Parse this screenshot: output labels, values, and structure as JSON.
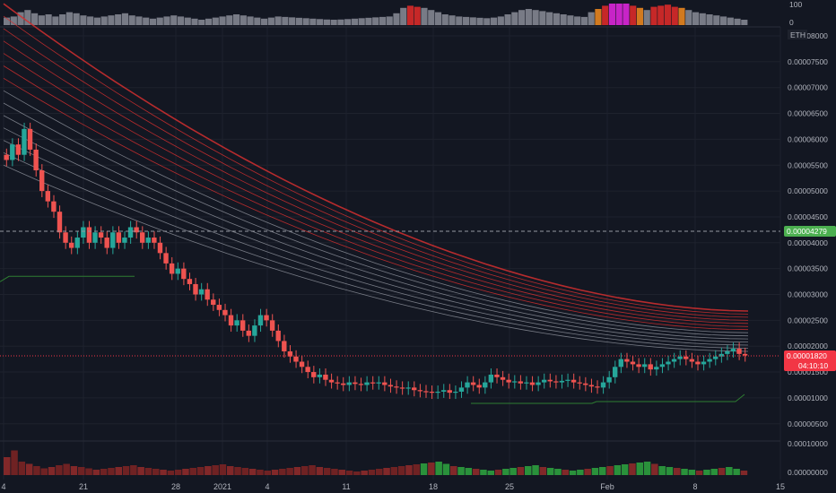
{
  "colors": {
    "background": "#131722",
    "grid": "#1e222d",
    "up": "#26a69a",
    "down": "#ef5350",
    "ribbon_red": "#d32f2f",
    "ribbon_gray": "#8a8d96",
    "ribbon_green": "#4caf50",
    "price_tag_current": "#f23645",
    "price_tag_marker": "#4caf50",
    "indicator_magenta": "#c724c7",
    "indicator_red": "#c62828",
    "indicator_gray": "#787b86",
    "indicator_orange": "#d27a1f"
  },
  "top_panel": {
    "label_max": "100",
    "label_min": "0"
  },
  "symbol_badge": "ETH",
  "price_scale": {
    "labels": [
      "0.00008000",
      "0.00007500",
      "0.00007000",
      "0.00006500",
      "0.00006000",
      "0.00005500",
      "0.00005000",
      "0.00004500",
      "0.00004000",
      "0.00003500",
      "0.00003000",
      "0.00002500",
      "0.00002000",
      "0.00001500",
      "0.00001000",
      "0.00000500"
    ],
    "marker_price": "0.00004279",
    "current_price": "0.00001820",
    "countdown": "04:10:10"
  },
  "volume_scale": {
    "labels": [
      "0.00010000",
      "0.00000000"
    ]
  },
  "time_axis": {
    "labels": [
      "4",
      "21",
      "28",
      "2021",
      "4",
      "11",
      "18",
      "25",
      "Feb",
      "8",
      "15"
    ]
  },
  "chart_data": {
    "type": "candlestick",
    "quote": "ETH",
    "ylim": [
      5e-07,
      8e-06
    ],
    "x_ticks": [
      "4",
      "21",
      "28",
      "2021",
      "4",
      "11",
      "18",
      "25",
      "Feb",
      "8",
      "15"
    ],
    "closes": [
      5.6,
      5.9,
      5.7,
      6.2,
      5.8,
      5.4,
      5.0,
      4.8,
      4.6,
      4.2,
      4.0,
      3.9,
      4.1,
      4.3,
      4.0,
      4.2,
      4.1,
      3.9,
      4.2,
      4.0,
      4.1,
      4.3,
      4.2,
      4.0,
      4.1,
      4.0,
      3.8,
      3.6,
      3.4,
      3.5,
      3.3,
      3.2,
      3.0,
      3.1,
      2.9,
      2.8,
      2.7,
      2.6,
      2.4,
      2.5,
      2.3,
      2.2,
      2.4,
      2.6,
      2.5,
      2.3,
      2.1,
      1.9,
      1.8,
      1.7,
      1.6,
      1.5,
      1.4,
      1.45,
      1.35,
      1.3,
      1.28,
      1.25,
      1.3,
      1.27,
      1.25,
      1.3,
      1.28,
      1.3,
      1.25,
      1.22,
      1.2,
      1.18,
      1.2,
      1.15,
      1.13,
      1.12,
      1.1,
      1.12,
      1.15,
      1.1,
      1.12,
      1.2,
      1.3,
      1.25,
      1.2,
      1.3,
      1.45,
      1.4,
      1.35,
      1.3,
      1.32,
      1.28,
      1.3,
      1.25,
      1.3,
      1.35,
      1.32,
      1.3,
      1.33,
      1.35,
      1.3,
      1.28,
      1.25,
      1.22,
      1.2,
      1.3,
      1.4,
      1.6,
      1.75,
      1.7,
      1.65,
      1.6,
      1.65,
      1.55,
      1.6,
      1.65,
      1.7,
      1.75,
      1.8,
      1.75,
      1.7,
      1.65,
      1.7,
      1.75,
      1.8,
      1.85,
      1.9,
      1.95,
      1.85,
      1.82
    ],
    "ema_ribbon_start": 5.5,
    "ema_ribbon_end": 1.9,
    "support_level": 3.35,
    "marker_level": 4.279,
    "current_level": 1.82,
    "oscillator": [
      35,
      40,
      60,
      70,
      55,
      45,
      50,
      40,
      50,
      60,
      55,
      45,
      40,
      35,
      40,
      45,
      50,
      55,
      45,
      40,
      35,
      30,
      35,
      40,
      45,
      40,
      35,
      30,
      25,
      30,
      35,
      40,
      45,
      50,
      45,
      40,
      35,
      30,
      35,
      40,
      38,
      36,
      34,
      32,
      30,
      28,
      26,
      25,
      26,
      28,
      30,
      32,
      34,
      36,
      38,
      40,
      55,
      80,
      90,
      85,
      80,
      70,
      60,
      50,
      45,
      40,
      38,
      36,
      34,
      32,
      35,
      40,
      50,
      60,
      70,
      75,
      70,
      65,
      60,
      55,
      50,
      45,
      40,
      38,
      60,
      75,
      90,
      100,
      100,
      100,
      90,
      80,
      70,
      85,
      90,
      95,
      85,
      80,
      70,
      60,
      55,
      50,
      45,
      40,
      35,
      30,
      25
    ],
    "volume": [
      40,
      55,
      30,
      25,
      20,
      15,
      18,
      22,
      25,
      20,
      18,
      15,
      12,
      14,
      16,
      18,
      20,
      22,
      18,
      16,
      14,
      12,
      10,
      12,
      14,
      16,
      18,
      20,
      22,
      24,
      20,
      18,
      16,
      14,
      12,
      10,
      12,
      14,
      16,
      18,
      20,
      22,
      18,
      16,
      14,
      12,
      10,
      8,
      10,
      12,
      14,
      16,
      18,
      20,
      22,
      24,
      26,
      28,
      30,
      25,
      20,
      18,
      16,
      14,
      12,
      10,
      12,
      14,
      16,
      18,
      20,
      22,
      18,
      16,
      14,
      12,
      10,
      12,
      14,
      16,
      18,
      20,
      22,
      24,
      26,
      28,
      30,
      25,
      20,
      18,
      16,
      14,
      12,
      10,
      12,
      14,
      16,
      18,
      14,
      10
    ]
  }
}
